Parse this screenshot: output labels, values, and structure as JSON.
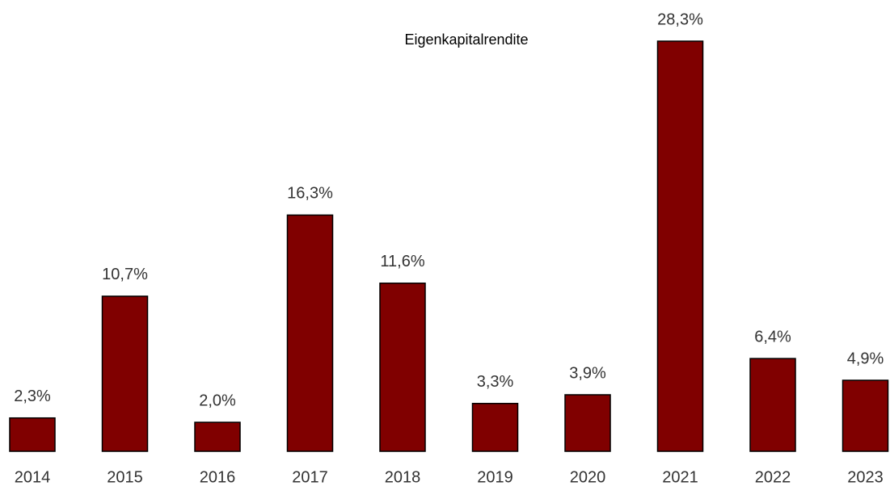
{
  "chart_data": {
    "type": "bar",
    "title": "Eigenkapitalrendite",
    "categories": [
      "2014",
      "2015",
      "2016",
      "2017",
      "2018",
      "2019",
      "2020",
      "2021",
      "2022",
      "2023"
    ],
    "values": [
      2.3,
      10.7,
      2.0,
      16.3,
      11.6,
      3.3,
      3.9,
      28.3,
      6.4,
      4.9
    ],
    "value_labels": [
      "2,3%",
      "10,7%",
      "2,0%",
      "16,3%",
      "11,6%",
      "3,3%",
      "3,9%",
      "28,3%",
      "6,4%",
      "4,9%"
    ],
    "color": "#800000"
  }
}
